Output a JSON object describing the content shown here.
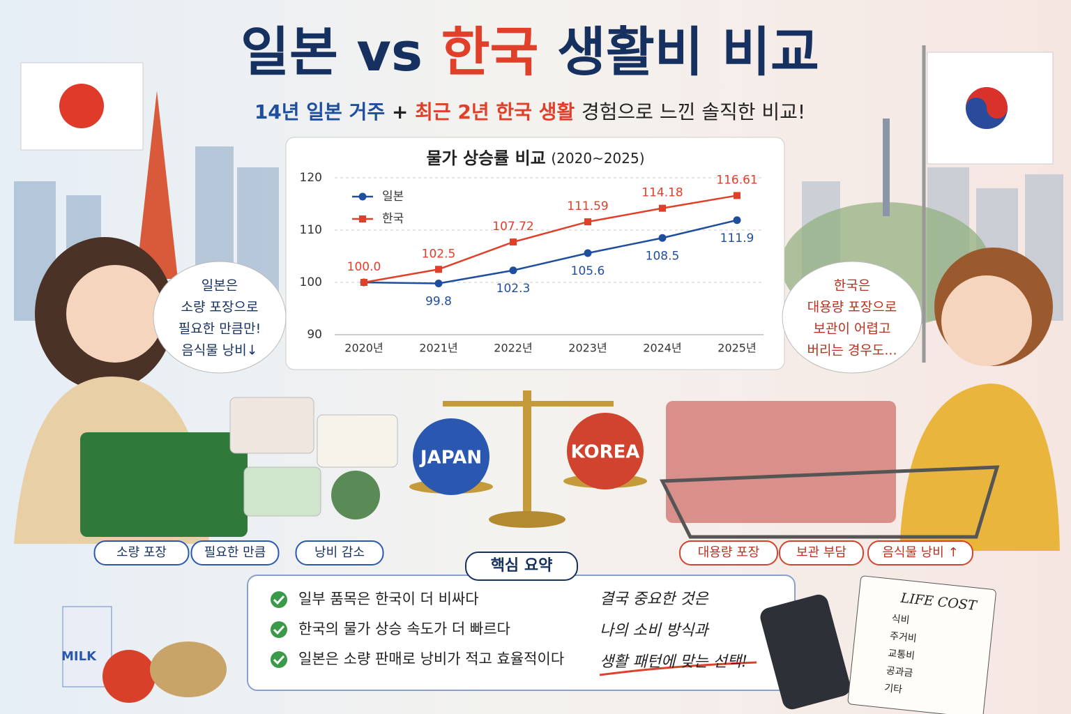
{
  "header": {
    "title": {
      "japan": "일본",
      "vs": "vs",
      "korea": "한국",
      "rest": "생활비 비교"
    },
    "subtitle": {
      "japan": "14년 일본 거주",
      "plus": "+",
      "korea": "최근 2년 한국 생활",
      "rest": "경험으로 느낀 솔직한 비교!"
    }
  },
  "chart_data": {
    "type": "line",
    "title": "물가 상승률 비교",
    "subtitle": "(2020~2025)",
    "categories": [
      "2020년",
      "2021년",
      "2022년",
      "2023년",
      "2024년",
      "2025년"
    ],
    "series": [
      {
        "name": "일본",
        "color": "#1f4e9c",
        "marker": "circle",
        "values": [
          100.0,
          99.8,
          102.3,
          105.6,
          108.5,
          111.9
        ],
        "value_labels": [
          null,
          "99.8",
          "102.3",
          "105.6",
          "108.5",
          "111.9"
        ]
      },
      {
        "name": "한국",
        "color": "#e0402a",
        "marker": "square",
        "values": [
          100.0,
          102.5,
          107.72,
          111.59,
          114.18,
          116.61
        ],
        "value_labels": [
          "100.0",
          "102.5",
          "107.72",
          "111.59",
          "114.18",
          "116.61"
        ]
      }
    ],
    "ylim": [
      90,
      120
    ],
    "yticks": [
      90,
      100,
      110,
      120
    ],
    "grid": true,
    "legend": "upper-left"
  },
  "left_bubble": [
    "일본은",
    "소량 포장으로",
    "필요한 만큼만!",
    "음식물 낭비↓"
  ],
  "right_bubble": [
    "한국은",
    "대용량 포장으로",
    "보관이 어렵고",
    "버리는 경우도..."
  ],
  "scale": {
    "left": "JAPAN",
    "right": "KOREA"
  },
  "left_tags": [
    "소량 포장",
    "필요한 만큼",
    "낭비 감소"
  ],
  "right_tags": [
    "대용량 포장",
    "보관 부담",
    "음식물 낭비 ↑"
  ],
  "summary": {
    "heading": "핵심 요약",
    "items": [
      "일부 품목은 한국이 더 비싸다",
      "한국의 물가 상승 속도가 더 빠르다",
      "일본은 소량 판매로 낭비가 적고 효율적이다"
    ],
    "note": [
      "결국 중요한 것은",
      "나의 소비 방식과",
      "생활 패턴에 맞는 선택!"
    ]
  },
  "notepad": {
    "title": "LIFE COST",
    "items": [
      "식비",
      "주거비",
      "교통비",
      "공과금",
      "기타"
    ]
  },
  "milk": "MILK"
}
